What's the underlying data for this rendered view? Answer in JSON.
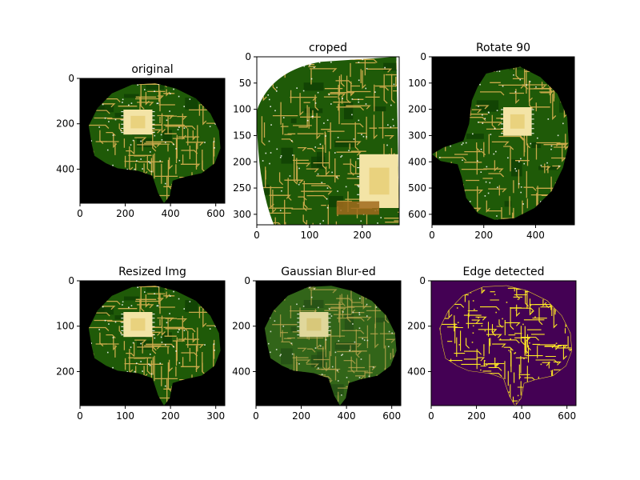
{
  "figure": {
    "background": "#ffffff",
    "colors": {
      "pcb_green": "#1f5a08",
      "pcb_dark": "#0d3a03",
      "trace_gold": "#c8a94a",
      "chip_light": "#f3e4a6",
      "copper": "#a06a1c",
      "background_black": "#000000",
      "edge_bg": "#440154",
      "edge_fg": "#fde725"
    }
  },
  "chart_data": [
    {
      "type": "heatmap",
      "title": "original",
      "image_content": "pcb-brain",
      "xlim": [
        0,
        640
      ],
      "ylim": [
        550,
        0
      ],
      "xticks": [
        0,
        200,
        400,
        600
      ],
      "yticks": [
        0,
        200,
        400
      ],
      "xtick_labels": [
        "0",
        "200",
        "400",
        "600"
      ],
      "ytick_labels": [
        "0",
        "200",
        "400"
      ]
    },
    {
      "type": "heatmap",
      "title": "croped",
      "image_content": "pcb-crop",
      "xlim": [
        0,
        270
      ],
      "ylim": [
        320,
        0
      ],
      "xticks": [
        0,
        100,
        200
      ],
      "yticks": [
        0,
        50,
        100,
        150,
        200,
        250,
        300
      ],
      "xtick_labels": [
        "0",
        "100",
        "200"
      ],
      "ytick_labels": [
        "0",
        "50",
        "100",
        "150",
        "200",
        "250",
        "300"
      ]
    },
    {
      "type": "heatmap",
      "title": "Rotate 90",
      "image_content": "pcb-brain-rotated",
      "xlim": [
        0,
        550
      ],
      "ylim": [
        640,
        0
      ],
      "xticks": [
        0,
        200,
        400
      ],
      "yticks": [
        0,
        100,
        200,
        300,
        400,
        500,
        600
      ],
      "xtick_labels": [
        "0",
        "200",
        "400"
      ],
      "ytick_labels": [
        "0",
        "100",
        "200",
        "300",
        "400",
        "500",
        "600"
      ]
    },
    {
      "type": "heatmap",
      "title": "Resized Img",
      "image_content": "pcb-brain",
      "xlim": [
        0,
        320
      ],
      "ylim": [
        275,
        0
      ],
      "xticks": [
        0,
        100,
        200,
        300
      ],
      "yticks": [
        0,
        100,
        200
      ],
      "xtick_labels": [
        "0",
        "100",
        "200",
        "300"
      ],
      "ytick_labels": [
        "0",
        "100",
        "200"
      ]
    },
    {
      "type": "heatmap",
      "title": "Gaussian Blur-ed",
      "image_content": "pcb-brain-blurred",
      "xlim": [
        0,
        640
      ],
      "ylim": [
        550,
        0
      ],
      "xticks": [
        0,
        200,
        400,
        600
      ],
      "yticks": [
        0,
        200,
        400
      ],
      "xtick_labels": [
        "0",
        "200",
        "400",
        "600"
      ],
      "ytick_labels": [
        "0",
        "200",
        "400"
      ]
    },
    {
      "type": "heatmap",
      "title": "Edge detected",
      "image_content": "pcb-brain-edges",
      "xlim": [
        0,
        640
      ],
      "ylim": [
        550,
        0
      ],
      "xticks": [
        0,
        200,
        400,
        600
      ],
      "yticks": [
        0,
        200,
        400
      ],
      "xtick_labels": [
        "0",
        "200",
        "400",
        "600"
      ],
      "ytick_labels": [
        "0",
        "200",
        "400"
      ]
    }
  ]
}
